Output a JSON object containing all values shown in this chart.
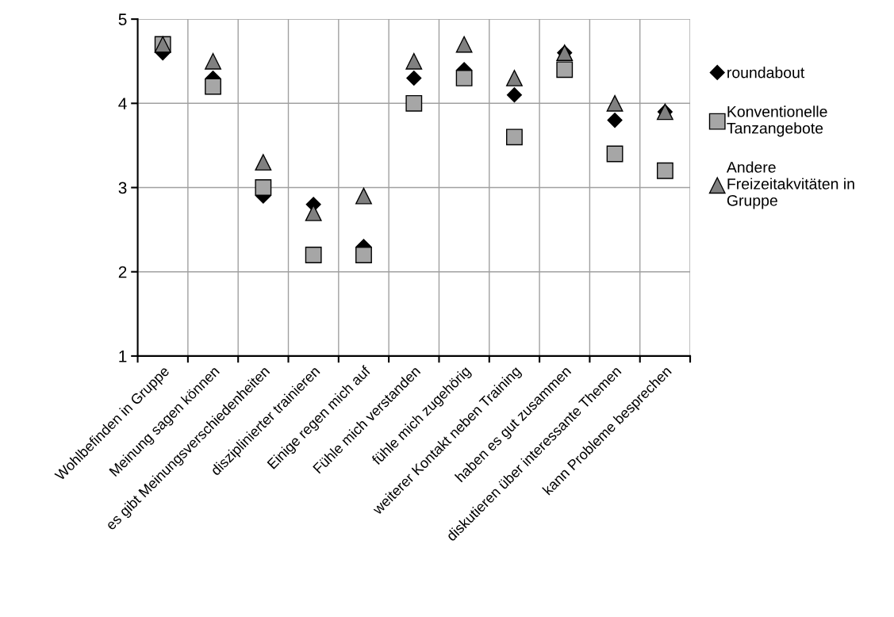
{
  "chart_data": {
    "type": "scatter",
    "categories": [
      "Wohlbefinden in Gruppe",
      "Meinung sagen können",
      "es gibt Meinungsverschiedenheiten",
      "disziplinierter trainieren",
      "Einige regen mich auf",
      "Fühle mich verstanden",
      "fühle mich zugehörig",
      "weiterer Kontakt neben Training",
      "haben es gut zusammen",
      "diskutieren über interessante Themen",
      "kann Probleme besprechen"
    ],
    "series": [
      {
        "name": "roundabout",
        "color": "#000000",
        "marker": "diamond",
        "values": [
          4.6,
          4.3,
          2.9,
          2.8,
          2.3,
          4.3,
          4.4,
          4.1,
          4.6,
          3.8,
          3.9
        ]
      },
      {
        "name": "Konventionelle\nTanzangebote",
        "color": "#a6a6a6",
        "marker": "square",
        "values": [
          4.7,
          4.2,
          3.0,
          2.2,
          2.2,
          4.0,
          4.3,
          3.6,
          4.4,
          3.4,
          3.2
        ]
      },
      {
        "name": "Andere\nFreizeitakvitäten in\nGruppe",
        "color": "#808080",
        "marker": "triangle",
        "values": [
          4.7,
          4.5,
          3.3,
          2.7,
          2.9,
          4.5,
          4.7,
          4.3,
          4.6,
          4.0,
          3.9
        ]
      }
    ],
    "ylim": [
      1,
      5
    ],
    "yticks": [
      1,
      2,
      3,
      4,
      5
    ],
    "grid": true,
    "legend": "right"
  }
}
